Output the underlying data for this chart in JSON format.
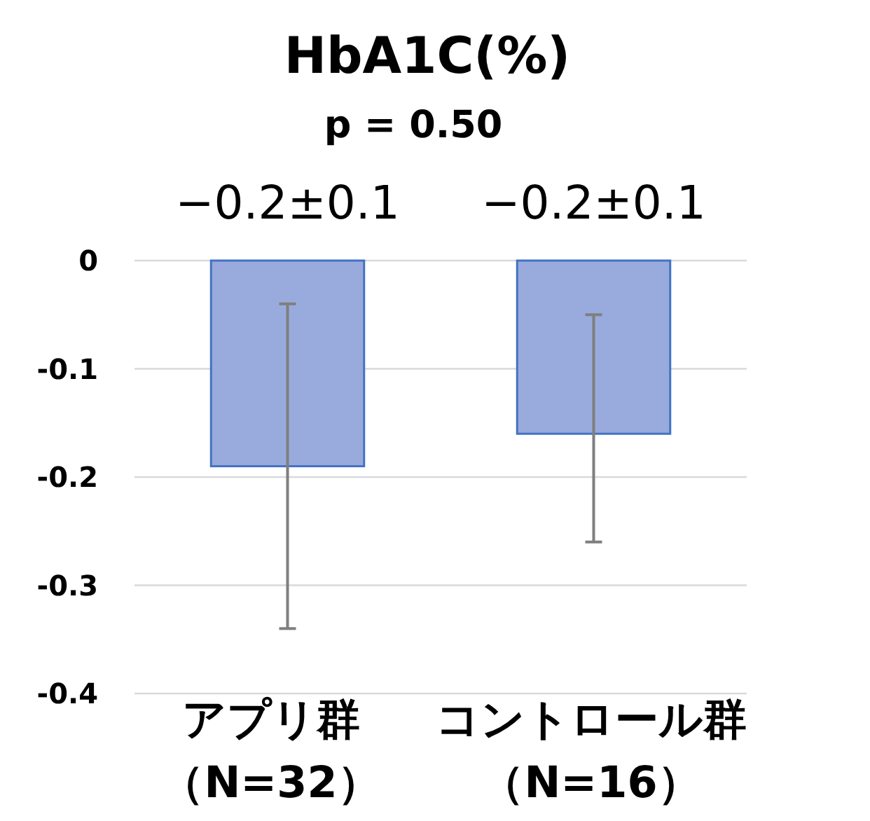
{
  "chart_data": {
    "type": "bar",
    "title": "HbA1C(%)",
    "subtitle": "p = 0.50",
    "categories": [
      "アプリ群（N=32）",
      "コントロール群（N=16）"
    ],
    "values": [
      -0.19,
      -0.16
    ],
    "errors": [
      [
        -0.34,
        -0.04
      ],
      [
        -0.26,
        -0.05
      ]
    ],
    "value_labels": [
      "−0.2±0.1",
      "−0.2±0.1"
    ],
    "color": "#98abdc",
    "ylim": [
      -0.4,
      0
    ],
    "yticks": [
      0,
      -0.1,
      -0.2,
      -0.3,
      -0.4
    ],
    "grid": "y"
  }
}
